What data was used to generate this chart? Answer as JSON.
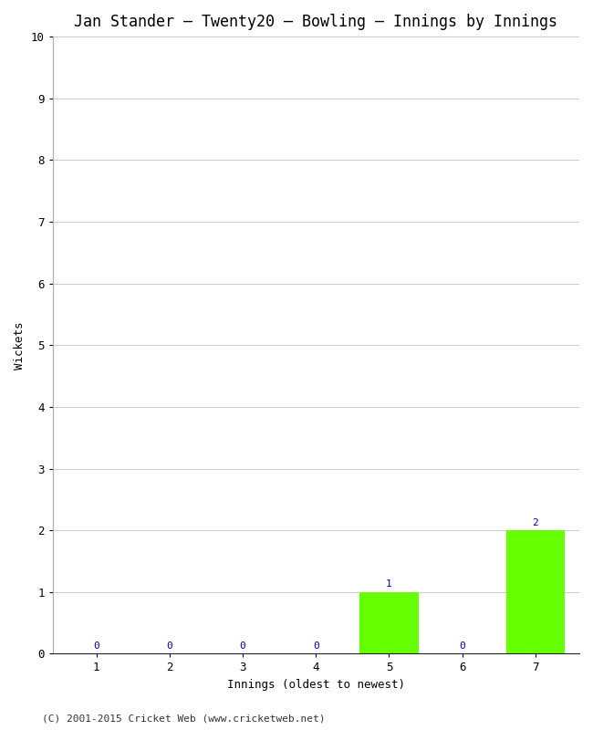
{
  "title": "Jan Stander – Twenty20 – Bowling – Innings by Innings",
  "xlabel": "Innings (oldest to newest)",
  "ylabel": "Wickets",
  "categories": [
    "1",
    "2",
    "3",
    "4",
    "5",
    "6",
    "7"
  ],
  "values": [
    0,
    0,
    0,
    0,
    1,
    0,
    2
  ],
  "bar_color_nonzero": "#66ff00",
  "ylim": [
    0,
    10
  ],
  "yticks": [
    0,
    1,
    2,
    3,
    4,
    5,
    6,
    7,
    8,
    9,
    10
  ],
  "background_color": "#ffffff",
  "plot_bg_color": "#ffffff",
  "title_fontsize": 12,
  "axis_label_fontsize": 9,
  "tick_fontsize": 9,
  "annotation_fontsize": 8,
  "annotation_color": "#0000cc",
  "footer": "(C) 2001-2015 Cricket Web (www.cricketweb.net)",
  "footer_fontsize": 8
}
